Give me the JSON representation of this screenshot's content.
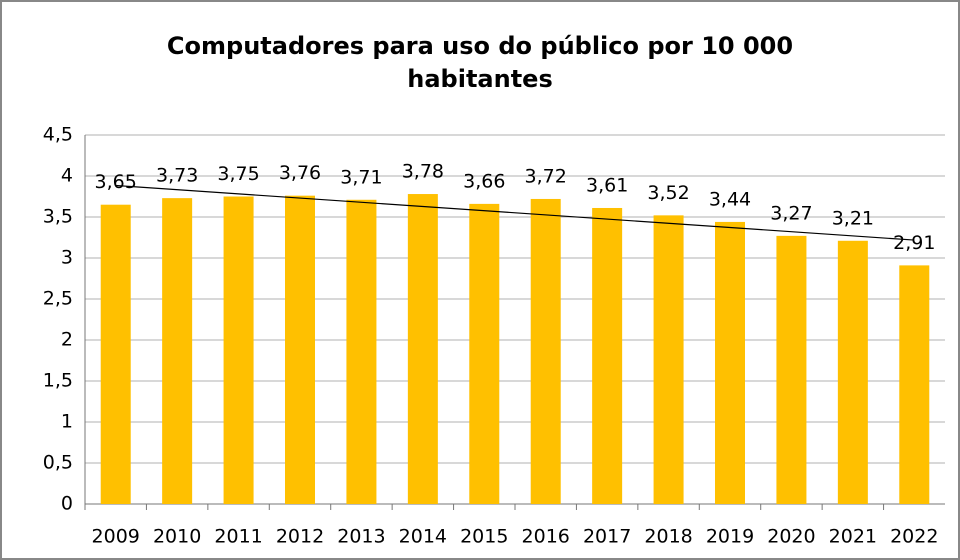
{
  "chart_data": {
    "type": "bar",
    "title": "Computadores para uso do público por 10 000 habitantes",
    "categories": [
      "2009",
      "2010",
      "2011",
      "2012",
      "2013",
      "2014",
      "2015",
      "2016",
      "2017",
      "2018",
      "2019",
      "2020",
      "2021",
      "2022"
    ],
    "values": [
      3.65,
      3.73,
      3.75,
      3.76,
      3.71,
      3.78,
      3.66,
      3.72,
      3.61,
      3.52,
      3.44,
      3.27,
      3.21,
      2.91
    ],
    "value_labels": [
      "3,65",
      "3,73",
      "3,75",
      "3,76",
      "3,71",
      "3,78",
      "3,66",
      "3,72",
      "3,61",
      "3,52",
      "3,44",
      "3,27",
      "3,21",
      "2,91"
    ],
    "color": "#ffc000",
    "ylim": [
      0,
      4.5
    ],
    "yticks": [
      0,
      {
        "value": 0.5,
        "label": "0,5"
      },
      1,
      {
        "value": 1.5,
        "label": "1,5"
      },
      2,
      {
        "value": 2.5,
        "label": "2,5"
      },
      3,
      {
        "value": 3.5,
        "label": "3,5"
      },
      4,
      {
        "value": 4.5,
        "label": "4,5"
      }
    ],
    "grid": true,
    "trendline": "linear"
  }
}
